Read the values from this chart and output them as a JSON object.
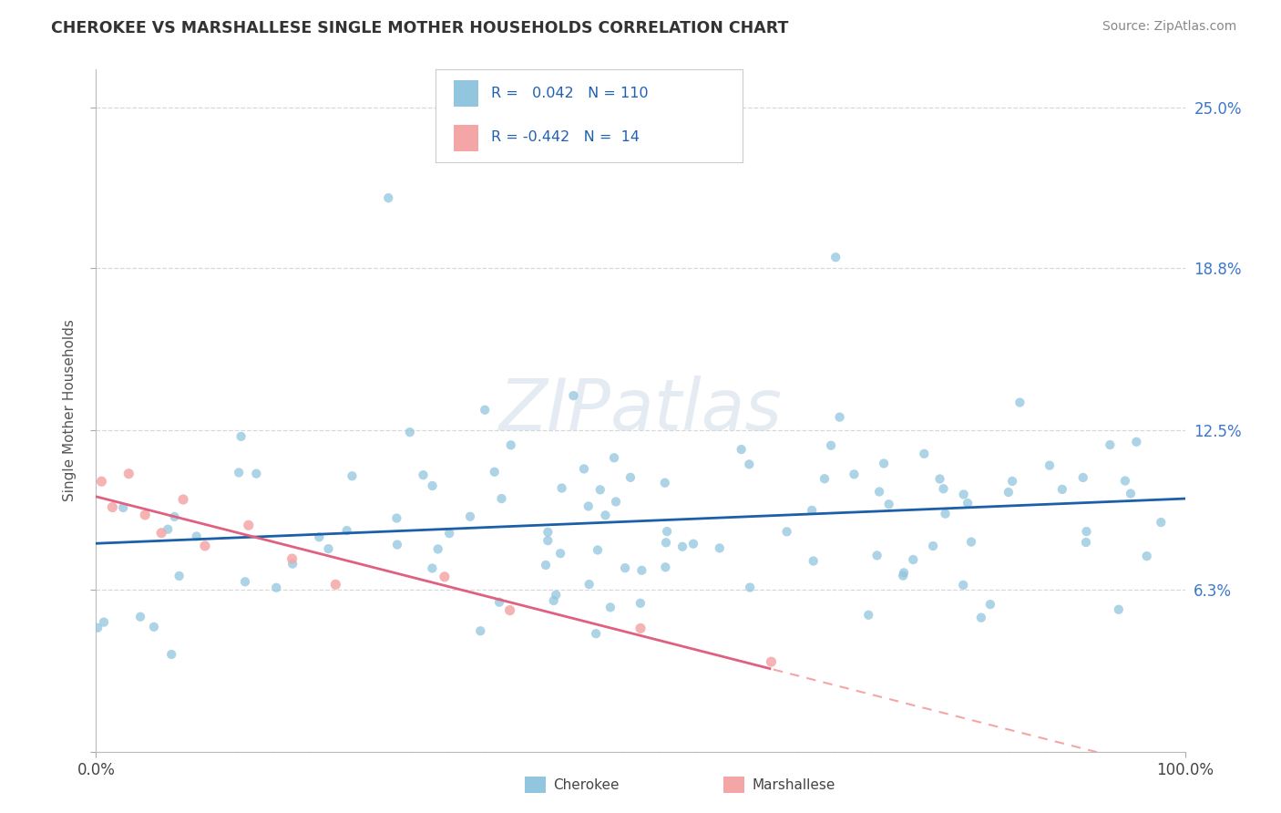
{
  "title": "CHEROKEE VS MARSHALLESE SINGLE MOTHER HOUSEHOLDS CORRELATION CHART",
  "source": "Source: ZipAtlas.com",
  "ylabel": "Single Mother Households",
  "cherokee_color": "#92c5de",
  "marshallese_color": "#f4a6a6",
  "cherokee_R": 0.042,
  "cherokee_N": 110,
  "marshallese_R": -0.442,
  "marshallese_N": 14,
  "trend_cherokee_color": "#1a5fa8",
  "trend_marshallese_solid_color": "#e06080",
  "trend_marshallese_dash_color": "#f4a6a6",
  "background_color": "#ffffff",
  "grid_color": "#d8d8d8",
  "ytick_values": [
    0.0,
    6.3,
    12.5,
    18.8,
    25.0
  ],
  "ytick_labels": [
    "",
    "6.3%",
    "12.5%",
    "18.8%",
    "25.0%"
  ],
  "ylim": [
    0,
    26.5
  ],
  "xlim": [
    0,
    100
  ]
}
